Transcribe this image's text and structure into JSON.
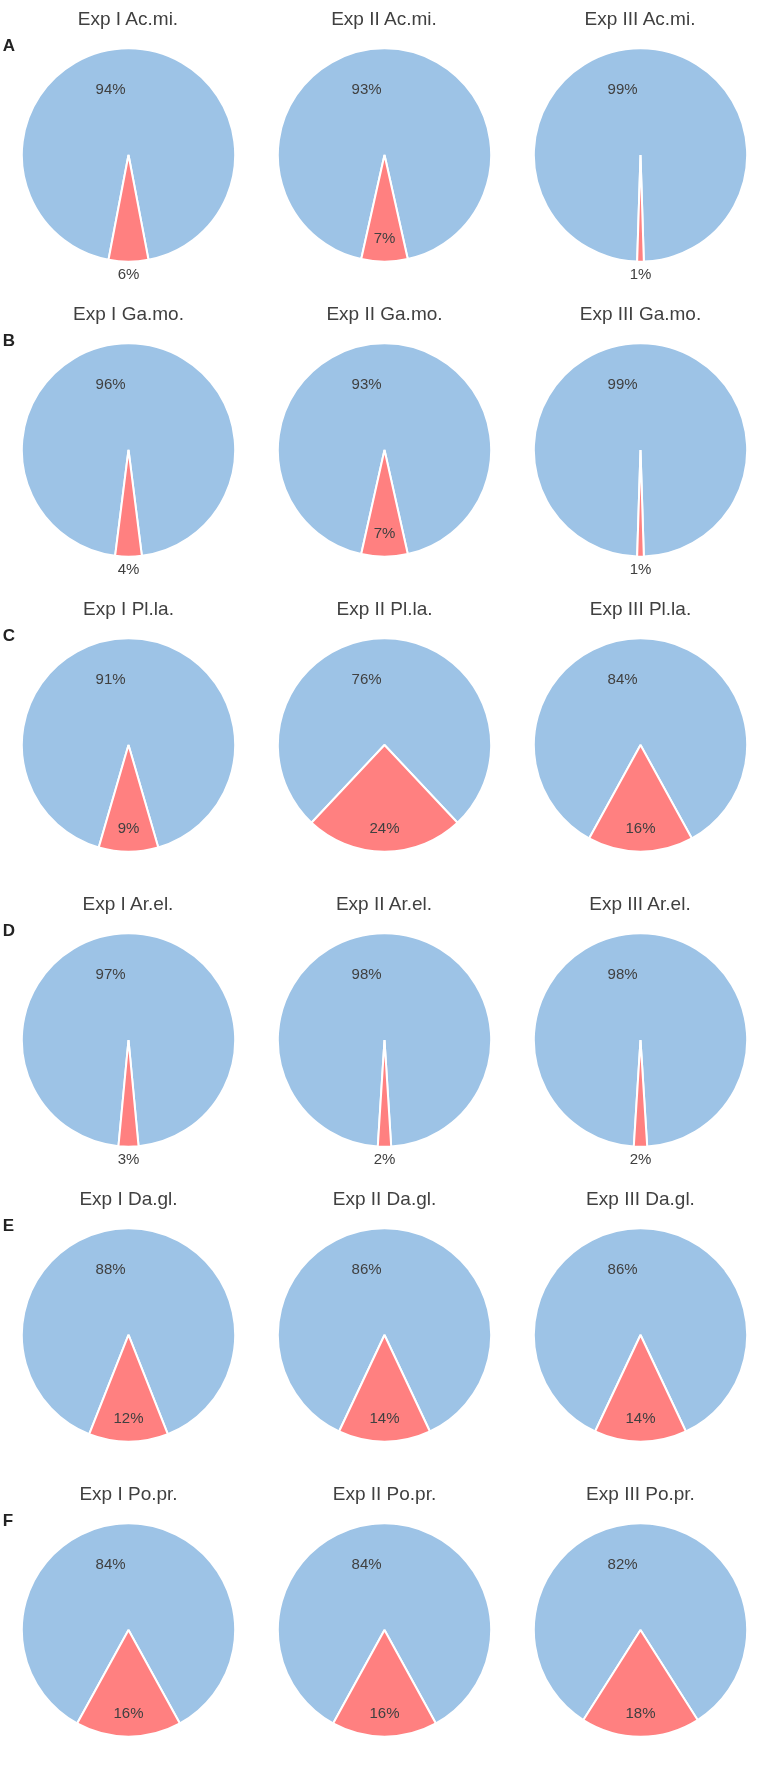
{
  "chart_data": [
    {
      "type": "pie",
      "title": "Exp I Ac.mi.",
      "annotations": [
        "A"
      ],
      "categories": [
        null,
        null
      ],
      "values": [
        94,
        6
      ],
      "colors": [
        "#9dc3e6",
        "#ff8080"
      ],
      "value_labels": [
        "94%",
        "6%"
      ]
    },
    {
      "type": "pie",
      "title": "Exp II Ac.mi.",
      "categories": [
        null,
        null
      ],
      "values": [
        93,
        7
      ],
      "colors": [
        "#9dc3e6",
        "#ff8080"
      ],
      "value_labels": [
        "93%",
        "7%"
      ]
    },
    {
      "type": "pie",
      "title": "Exp III Ac.mi.",
      "categories": [
        null,
        null
      ],
      "values": [
        99,
        1
      ],
      "colors": [
        "#9dc3e6",
        "#ff8080"
      ],
      "value_labels": [
        "99%",
        "1%"
      ]
    },
    {
      "type": "pie",
      "title": "Exp I Ga.mo.",
      "annotations": [
        "B"
      ],
      "categories": [
        null,
        null
      ],
      "values": [
        96,
        4
      ],
      "colors": [
        "#9dc3e6",
        "#ff8080"
      ],
      "value_labels": [
        "96%",
        "4%"
      ]
    },
    {
      "type": "pie",
      "title": "Exp II Ga.mo.",
      "categories": [
        null,
        null
      ],
      "values": [
        93,
        7
      ],
      "colors": [
        "#9dc3e6",
        "#ff8080"
      ],
      "value_labels": [
        "93%",
        "7%"
      ]
    },
    {
      "type": "pie",
      "title": "Exp III Ga.mo.",
      "categories": [
        null,
        null
      ],
      "values": [
        99,
        1
      ],
      "colors": [
        "#9dc3e6",
        "#ff8080"
      ],
      "value_labels": [
        "99%",
        "1%"
      ]
    },
    {
      "type": "pie",
      "title": "Exp I Pl.la.",
      "annotations": [
        "C"
      ],
      "categories": [
        null,
        null
      ],
      "values": [
        91,
        9
      ],
      "colors": [
        "#9dc3e6",
        "#ff8080"
      ],
      "value_labels": [
        "91%",
        "9%"
      ]
    },
    {
      "type": "pie",
      "title": "Exp II Pl.la.",
      "categories": [
        null,
        null
      ],
      "values": [
        76,
        24
      ],
      "colors": [
        "#9dc3e6",
        "#ff8080"
      ],
      "value_labels": [
        "76%",
        "24%"
      ]
    },
    {
      "type": "pie",
      "title": "Exp III Pl.la.",
      "categories": [
        null,
        null
      ],
      "values": [
        84,
        16
      ],
      "colors": [
        "#9dc3e6",
        "#ff8080"
      ],
      "value_labels": [
        "84%",
        "16%"
      ]
    },
    {
      "type": "pie",
      "title": "Exp I Ar.el.",
      "annotations": [
        "D"
      ],
      "categories": [
        null,
        null
      ],
      "values": [
        97,
        3
      ],
      "colors": [
        "#9dc3e6",
        "#ff8080"
      ],
      "value_labels": [
        "97%",
        "3%"
      ]
    },
    {
      "type": "pie",
      "title": "Exp II Ar.el.",
      "categories": [
        null,
        null
      ],
      "values": [
        98,
        2
      ],
      "colors": [
        "#9dc3e6",
        "#ff8080"
      ],
      "value_labels": [
        "98%",
        "2%"
      ]
    },
    {
      "type": "pie",
      "title": "Exp III Ar.el.",
      "categories": [
        null,
        null
      ],
      "values": [
        98,
        2
      ],
      "colors": [
        "#9dc3e6",
        "#ff8080"
      ],
      "value_labels": [
        "98%",
        "2%"
      ]
    },
    {
      "type": "pie",
      "title": "Exp I Da.gl.",
      "annotations": [
        "E"
      ],
      "categories": [
        null,
        null
      ],
      "values": [
        88,
        12
      ],
      "colors": [
        "#9dc3e6",
        "#ff8080"
      ],
      "value_labels": [
        "88%",
        "12%"
      ]
    },
    {
      "type": "pie",
      "title": "Exp II Da.gl.",
      "categories": [
        null,
        null
      ],
      "values": [
        86,
        14
      ],
      "colors": [
        "#9dc3e6",
        "#ff8080"
      ],
      "value_labels": [
        "86%",
        "14%"
      ]
    },
    {
      "type": "pie",
      "title": "Exp III Da.gl.",
      "categories": [
        null,
        null
      ],
      "values": [
        86,
        14
      ],
      "colors": [
        "#9dc3e6",
        "#ff8080"
      ],
      "value_labels": [
        "86%",
        "14%"
      ]
    },
    {
      "type": "pie",
      "title": "Exp I Po.pr.",
      "annotations": [
        "F"
      ],
      "categories": [
        null,
        null
      ],
      "values": [
        84,
        16
      ],
      "colors": [
        "#9dc3e6",
        "#ff8080"
      ],
      "value_labels": [
        "84%",
        "16%"
      ]
    },
    {
      "type": "pie",
      "title": "Exp II Po.pr.",
      "categories": [
        null,
        null
      ],
      "values": [
        84,
        16
      ],
      "colors": [
        "#9dc3e6",
        "#ff8080"
      ],
      "value_labels": [
        "84%",
        "16%"
      ]
    },
    {
      "type": "pie",
      "title": "Exp III Po.pr.",
      "categories": [
        null,
        null
      ],
      "values": [
        82,
        18
      ],
      "colors": [
        "#9dc3e6",
        "#ff8080"
      ],
      "value_labels": [
        "82%",
        "18%"
      ]
    }
  ]
}
